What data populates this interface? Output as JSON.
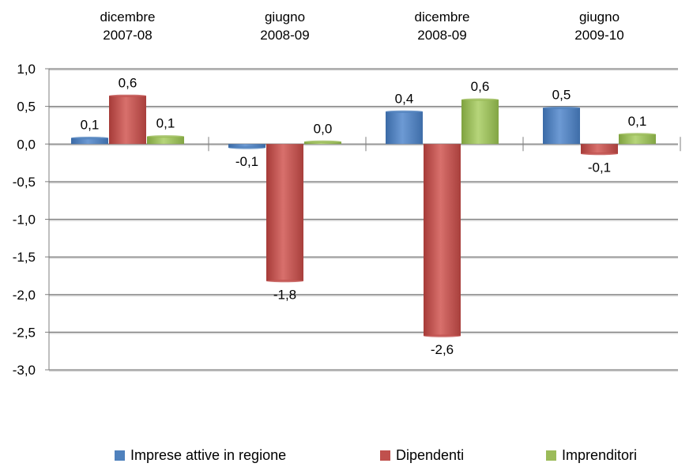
{
  "chart_data": {
    "type": "bar",
    "categories": [
      [
        "dicembre",
        "2007-08"
      ],
      [
        "giugno",
        "2008-09"
      ],
      [
        "dicembre",
        "2008-09"
      ],
      [
        "giugno",
        "2009-10"
      ]
    ],
    "series": [
      {
        "name": "Imprese attive in regione",
        "color": "#4f81bd",
        "values": [
          0.08,
          -0.05,
          0.43,
          0.48
        ],
        "labels": [
          "0,1",
          "-0,1",
          "0,4",
          "0,5"
        ]
      },
      {
        "name": "Dipendenti",
        "color": "#c0504d",
        "values": [
          0.64,
          -1.82,
          -2.55,
          -0.13
        ],
        "labels": [
          "0,6",
          "-1,8",
          "-2,6",
          "-0,1"
        ]
      },
      {
        "name": "Imprenditori",
        "color": "#9bbb59",
        "values": [
          0.1,
          0.03,
          0.59,
          0.13
        ],
        "labels": [
          "0,1",
          "0,0",
          "0,6",
          "0,1"
        ]
      }
    ],
    "ylim": [
      -3.0,
      1.0
    ],
    "yticks": [
      "1,0",
      "0,5",
      "0,0",
      "-0,5",
      "-1,0",
      "-1,5",
      "-2,0",
      "-2,5",
      "-3,0"
    ],
    "grid": true,
    "legend_position": "bottom"
  }
}
